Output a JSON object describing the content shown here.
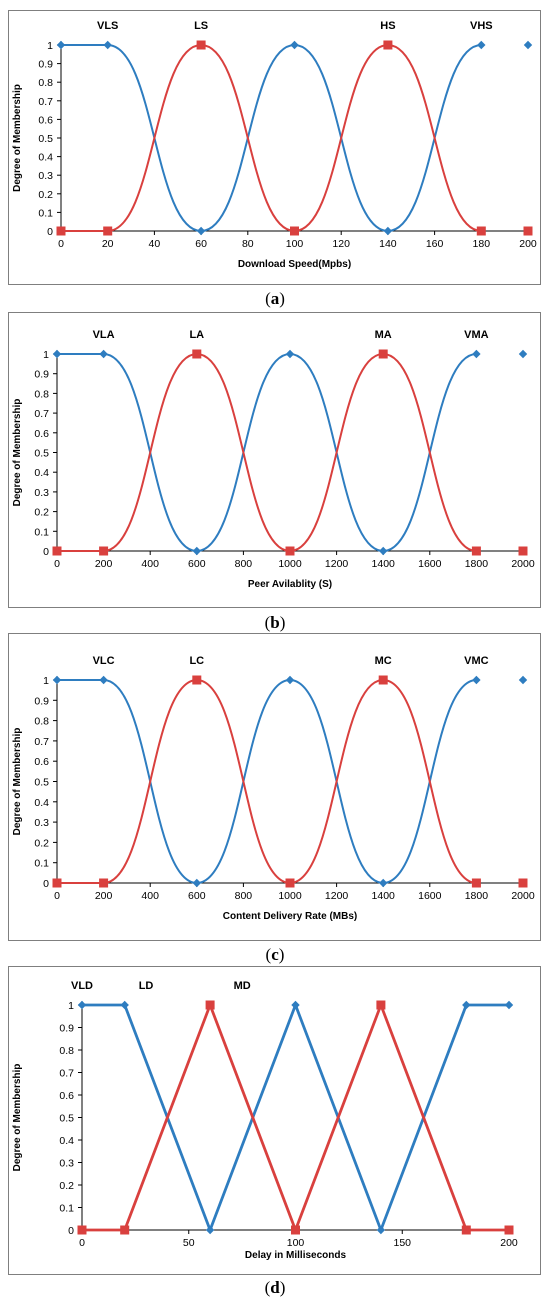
{
  "colors": {
    "blue": "#2e7dc0",
    "red": "#d9403e",
    "frame": "#7f7f7f"
  },
  "chart_data": [
    {
      "type": "line",
      "caption": "a",
      "xlabel": "Download Speed(Mpbs)",
      "ylabel": "Degree of Membership",
      "xlim": [
        0,
        200
      ],
      "ylim": [
        0,
        1
      ],
      "x_ticks": [
        "0",
        "20",
        "40",
        "60",
        "80",
        "100",
        "120",
        "140",
        "160",
        "180",
        "200"
      ],
      "y_ticks": [
        "0",
        "0.1",
        "0.2",
        "0.3",
        "0.4",
        "0.5",
        "0.6",
        "0.7",
        "0.8",
        "0.9",
        "1"
      ],
      "set_labels": [
        {
          "text": "VLS",
          "x": 20
        },
        {
          "text": "LS",
          "x": 60
        },
        {
          "text": "HS",
          "x": 140
        },
        {
          "text": "VHS",
          "x": 180
        }
      ],
      "curve": "smooth",
      "series": [
        {
          "color": "blue",
          "marker": "diamond",
          "x": [
            0,
            20,
            60,
            100,
            140,
            180,
            200
          ],
          "y": [
            1,
            1,
            0,
            1,
            0,
            1,
            1
          ],
          "broken_after": 5
        },
        {
          "color": "red",
          "marker": "square",
          "x": [
            0,
            20,
            60,
            100,
            140,
            180,
            200
          ],
          "y": [
            0,
            0,
            1,
            0,
            1,
            0,
            0
          ],
          "broken_after": 5
        }
      ]
    },
    {
      "type": "line",
      "caption": "b",
      "xlabel": "Peer Avilablity (S)",
      "ylabel": "Degree of Membership",
      "xlim": [
        0,
        2000
      ],
      "ylim": [
        0,
        1
      ],
      "x_ticks": [
        "0",
        "200",
        "400",
        "600",
        "800",
        "1000",
        "1200",
        "1400",
        "1600",
        "1800",
        "2000"
      ],
      "y_ticks": [
        "0",
        "0.1",
        "0.2",
        "0.3",
        "0.4",
        "0.5",
        "0.6",
        "0.7",
        "0.8",
        "0.9",
        "1"
      ],
      "set_labels": [
        {
          "text": "VLA",
          "x": 200
        },
        {
          "text": "LA",
          "x": 600
        },
        {
          "text": "MA",
          "x": 1400
        },
        {
          "text": "VMA",
          "x": 1800
        }
      ],
      "curve": "smooth",
      "series": [
        {
          "color": "blue",
          "marker": "diamond",
          "x": [
            0,
            200,
            600,
            1000,
            1400,
            1800,
            2000
          ],
          "y": [
            1,
            1,
            0,
            1,
            0,
            1,
            1
          ],
          "broken_after": 5
        },
        {
          "color": "red",
          "marker": "square",
          "x": [
            0,
            200,
            600,
            1000,
            1400,
            1800,
            2000
          ],
          "y": [
            0,
            0,
            1,
            0,
            1,
            0,
            0
          ],
          "broken_after": 5
        }
      ]
    },
    {
      "type": "line",
      "caption": "c",
      "xlabel": "Content Delivery Rate (MBs)",
      "ylabel": "Degree of Membership",
      "xlim": [
        0,
        2000
      ],
      "ylim": [
        0,
        1
      ],
      "x_ticks": [
        "0",
        "200",
        "400",
        "600",
        "800",
        "1000",
        "1200",
        "1400",
        "1600",
        "1800",
        "2000"
      ],
      "y_ticks": [
        "0",
        "0.1",
        "0.2",
        "0.3",
        "0.4",
        "0.5",
        "0.6",
        "0.7",
        "0.8",
        "0.9",
        "1"
      ],
      "set_labels": [
        {
          "text": "VLC",
          "x": 200
        },
        {
          "text": "LC",
          "x": 600
        },
        {
          "text": "MC",
          "x": 1400
        },
        {
          "text": "VMC",
          "x": 1800
        }
      ],
      "curve": "smooth",
      "series": [
        {
          "color": "blue",
          "marker": "diamond",
          "x": [
            0,
            200,
            600,
            1000,
            1400,
            1800,
            2000
          ],
          "y": [
            1,
            1,
            0,
            1,
            0,
            1,
            1
          ],
          "broken_after": 5
        },
        {
          "color": "red",
          "marker": "square",
          "x": [
            0,
            200,
            600,
            1000,
            1400,
            1800,
            2000
          ],
          "y": [
            0,
            0,
            1,
            0,
            1,
            0,
            0
          ],
          "broken_after": 5
        }
      ]
    },
    {
      "type": "line",
      "caption": "d",
      "xlabel": "Delay in Milliseconds",
      "ylabel": "Degree of Membership",
      "xlim": [
        0,
        200
      ],
      "ylim": [
        0,
        1
      ],
      "x_ticks": [
        "0",
        "50",
        "100",
        "150",
        "200"
      ],
      "y_ticks": [
        "0",
        "0.1",
        "0.2",
        "0.3",
        "0.4",
        "0.5",
        "0.6",
        "0.7",
        "0.8",
        "0.9",
        "1"
      ],
      "set_labels": [
        {
          "text": "VLD",
          "x": 0
        },
        {
          "text": "LD",
          "x": 30
        },
        {
          "text": "MD",
          "x": 75
        }
      ],
      "curve": "straight",
      "series": [
        {
          "color": "blue",
          "marker": "diamond",
          "x": [
            0,
            20,
            60,
            100,
            140,
            180,
            200
          ],
          "y": [
            1,
            1,
            0,
            1,
            0,
            1,
            1
          ]
        },
        {
          "color": "red",
          "marker": "square",
          "x": [
            0,
            20,
            60,
            100,
            140,
            180,
            200
          ],
          "y": [
            0,
            0,
            1,
            0,
            1,
            0,
            0
          ]
        }
      ]
    }
  ]
}
